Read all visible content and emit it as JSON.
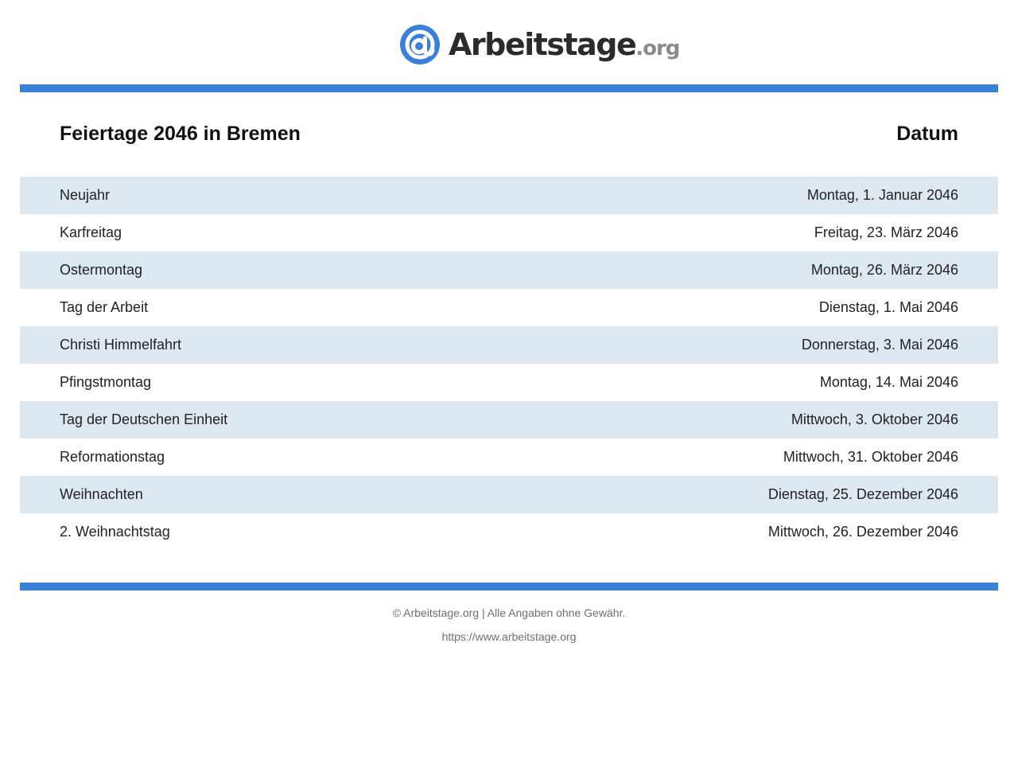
{
  "brand": {
    "logo_icon": "at-sign-icon",
    "name": "Arbeitstage",
    "tld": ".org",
    "accent_color": "#3a7fd9",
    "row_alt_color": "#dde8f0"
  },
  "table": {
    "title": "Feiertage 2046 in Bremen",
    "date_header": "Datum",
    "rows": [
      {
        "name": "Neujahr",
        "date": "Montag, 1. Januar 2046"
      },
      {
        "name": "Karfreitag",
        "date": "Freitag, 23. März 2046"
      },
      {
        "name": "Ostermontag",
        "date": "Montag, 26. März 2046"
      },
      {
        "name": "Tag der Arbeit",
        "date": "Dienstag, 1. Mai 2046"
      },
      {
        "name": "Christi Himmelfahrt",
        "date": "Donnerstag, 3. Mai 2046"
      },
      {
        "name": "Pfingstmontag",
        "date": "Montag, 14. Mai 2046"
      },
      {
        "name": "Tag der Deutschen Einheit",
        "date": "Mittwoch, 3. Oktober 2046"
      },
      {
        "name": "Reformationstag",
        "date": "Mittwoch, 31. Oktober 2046"
      },
      {
        "name": "Weihnachten",
        "date": "Dienstag, 25. Dezember 2046"
      },
      {
        "name": "2. Weihnachtstag",
        "date": "Mittwoch, 26. Dezember 2046"
      }
    ]
  },
  "footer": {
    "copyright": "© Arbeitstage.org | Alle Angaben ohne Gewähr.",
    "url": "https://www.arbeitstage.org"
  }
}
